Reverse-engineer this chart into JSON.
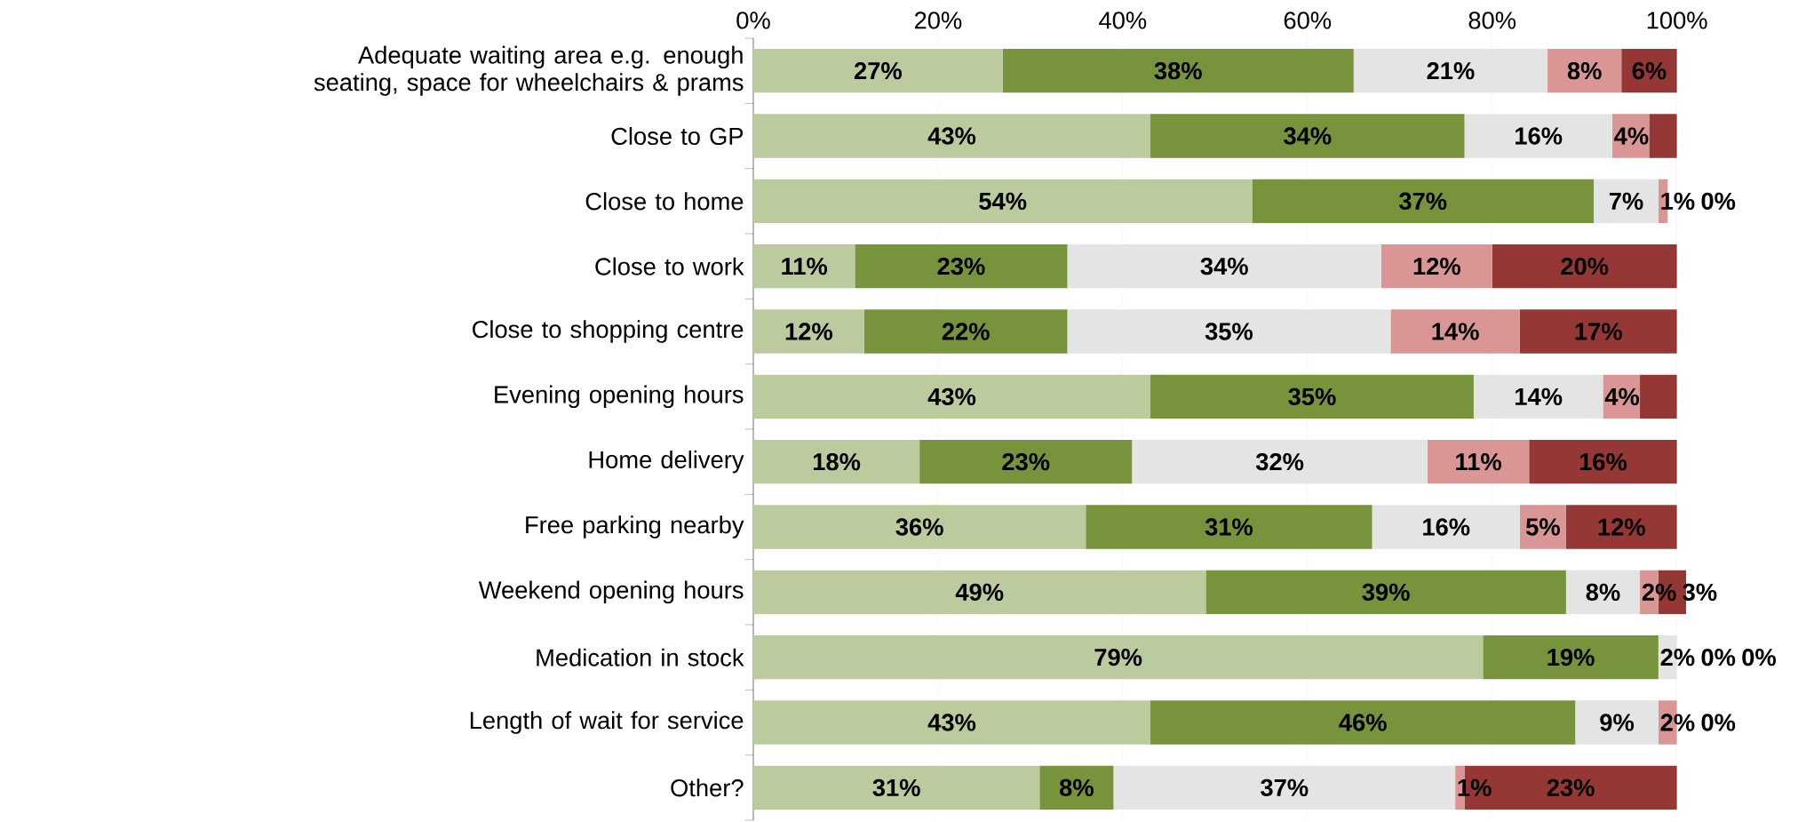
{
  "chart_data": {
    "type": "bar",
    "orientation": "horizontal",
    "stacked": true,
    "grid": "x",
    "categories": [
      "Adequate waiting area e.g. enough seating, space for wheelchairs & prams",
      "Close to GP",
      "Close to home",
      "Close to work",
      "Close to shopping centre",
      "Evening opening hours",
      "Home delivery",
      "Free parking nearby",
      "Weekend opening hours",
      "Medication in stock",
      "Length of wait for service",
      "Other?"
    ],
    "series": [
      {
        "color": "#bccb9e",
        "values": [
          27,
          43,
          54,
          11,
          12,
          43,
          18,
          36,
          49,
          79,
          43,
          31
        ],
        "value_labels": [
          "27%",
          "43%",
          "54%",
          "11%",
          "12%",
          "43%",
          "18%",
          "36%",
          "49%",
          "79%",
          "43%",
          "31%"
        ]
      },
      {
        "color": "#77933c",
        "values": [
          38,
          34,
          37,
          23,
          22,
          35,
          23,
          31,
          39,
          19,
          46,
          8
        ],
        "value_labels": [
          "38%",
          "34%",
          "37%",
          "23%",
          "22%",
          "35%",
          "23%",
          "31%",
          "39%",
          "19%",
          "46%",
          "8%"
        ]
      },
      {
        "color": "#e4e4e4",
        "values": [
          21,
          16,
          7,
          34,
          35,
          14,
          32,
          16,
          8,
          2,
          9,
          37
        ],
        "value_labels": [
          "21%",
          "16%",
          "7%",
          "34%",
          "35%",
          "14%",
          "32%",
          "16%",
          "8%",
          "2%",
          "9%",
          "37%"
        ]
      },
      {
        "color": "#d99694",
        "values": [
          8,
          4,
          1,
          12,
          14,
          4,
          11,
          5,
          2,
          0,
          2,
          1
        ],
        "value_labels": [
          "8%",
          "4%",
          "1%",
          "12%",
          "14%",
          "4%",
          "11%",
          "5%",
          "2%",
          "0%",
          "2%",
          "1%"
        ]
      },
      {
        "color": "#953735",
        "values": [
          6,
          3,
          0,
          20,
          17,
          4,
          16,
          12,
          3,
          0,
          0,
          23
        ],
        "value_labels": [
          "6%",
          null,
          "0%",
          "20%",
          "17%",
          null,
          "16%",
          "12%",
          "3%",
          "0%",
          "0%",
          "23%"
        ]
      }
    ],
    "xlim": [
      0,
      101
    ],
    "xticks": [
      {
        "value": 0,
        "label": "0%"
      },
      {
        "value": 20,
        "label": "20%"
      },
      {
        "value": 40,
        "label": "40%"
      },
      {
        "value": 60,
        "label": "60%"
      },
      {
        "value": 80,
        "label": "80%"
      },
      {
        "value": 100,
        "label": "100%"
      }
    ]
  }
}
